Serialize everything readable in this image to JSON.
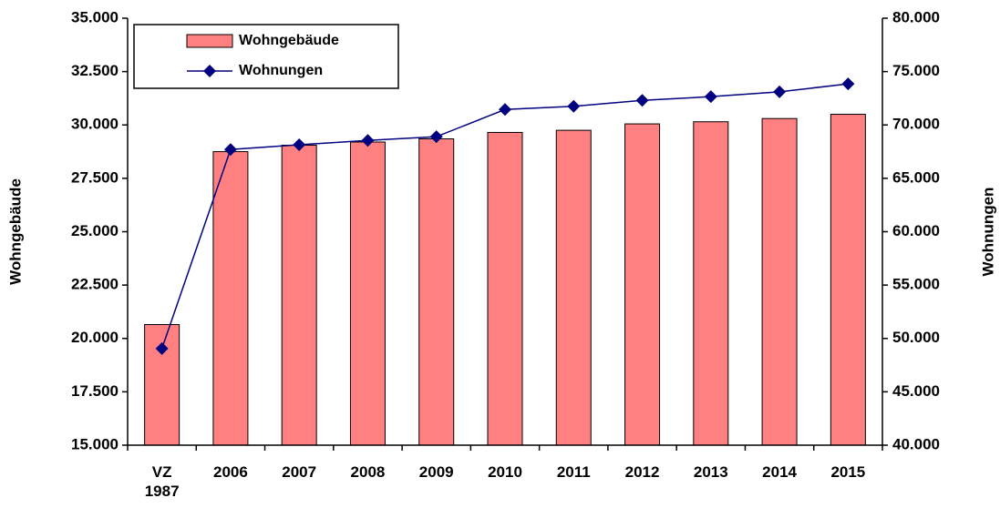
{
  "chart_data": {
    "type": "combo",
    "categories": [
      "VZ 1987",
      "2006",
      "2007",
      "2008",
      "2009",
      "2010",
      "2011",
      "2012",
      "2013",
      "2014",
      "2015"
    ],
    "series": [
      {
        "name": "Wohngebäude",
        "type": "bar",
        "color": "#ff8080",
        "axis": "y",
        "values": [
          20650,
          28750,
          29050,
          29200,
          29350,
          29650,
          29750,
          30050,
          30150,
          30300,
          30500
        ]
      },
      {
        "name": "Wohnungen",
        "type": "line",
        "color": "#000080",
        "axis": "y2",
        "values": [
          49050,
          67700,
          68150,
          68550,
          68900,
          71450,
          71750,
          72300,
          72650,
          73100,
          73850
        ]
      }
    ],
    "ylabel": "Wohngebäude",
    "y2label": "Wohnungen",
    "ylim": [
      15000,
      35000
    ],
    "yticks": [
      {
        "value": 15000,
        "label": "15.000"
      },
      {
        "value": 17500,
        "label": "17.500"
      },
      {
        "value": 20000,
        "label": "20.000"
      },
      {
        "value": 22500,
        "label": "22.500"
      },
      {
        "value": 25000,
        "label": "25.000"
      },
      {
        "value": 27500,
        "label": "27.500"
      },
      {
        "value": 30000,
        "label": "30.000"
      },
      {
        "value": 32500,
        "label": "32.500"
      },
      {
        "value": 35000,
        "label": "35.000"
      }
    ],
    "y2lim": [
      40000,
      80000
    ],
    "y2ticks": [
      {
        "value": 40000,
        "label": "40.000"
      },
      {
        "value": 45000,
        "label": "45.000"
      },
      {
        "value": 50000,
        "label": "50.000"
      },
      {
        "value": 55000,
        "label": "55.000"
      },
      {
        "value": 60000,
        "label": "60.000"
      },
      {
        "value": 65000,
        "label": "65.000"
      },
      {
        "value": 70000,
        "label": "70.000"
      },
      {
        "value": 75000,
        "label": "75.000"
      },
      {
        "value": 80000,
        "label": "80.000"
      }
    ],
    "grid": false,
    "legend": "upper left"
  }
}
